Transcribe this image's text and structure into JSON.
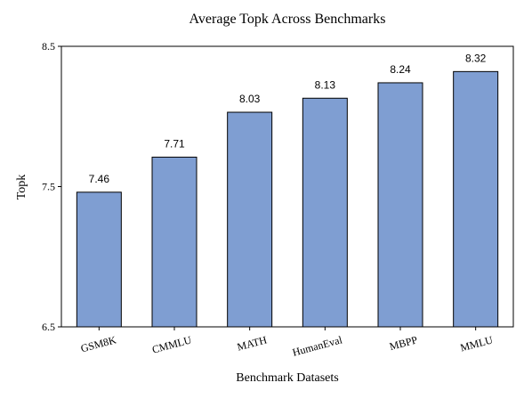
{
  "chart_data": {
    "type": "bar",
    "title": "Average Topk Across Benchmarks",
    "xlabel": "Benchmark Datasets",
    "ylabel": "Topk",
    "categories": [
      "GSM8K",
      "CMMLU",
      "MATH",
      "HumanEval",
      "MBPP",
      "MMLU"
    ],
    "values": [
      7.46,
      7.71,
      8.03,
      8.13,
      8.24,
      8.32
    ],
    "value_labels": [
      "7.46",
      "7.71",
      "8.03",
      "8.13",
      "8.24",
      "8.32"
    ],
    "ylim": [
      6.5,
      8.5
    ],
    "yticks": [
      6.5,
      7.5,
      8.5
    ],
    "ytick_labels": [
      "6.5",
      "7.5",
      "8.5"
    ],
    "grid": false,
    "bar_color": "#7f9ed2",
    "bar_edge_color": "#000000"
  }
}
